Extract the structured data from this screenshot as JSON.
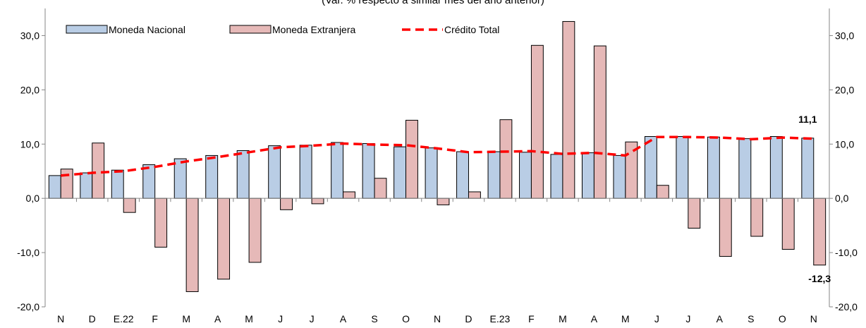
{
  "chart_data": {
    "type": "bar",
    "subtitle": "(Var. % respecto a similar mes del año anterior)",
    "categories": [
      "N",
      "D",
      "E.22",
      "F",
      "M",
      "A",
      "M",
      "J",
      "J",
      "A",
      "S",
      "O",
      "N",
      "D",
      "E.23",
      "F",
      "M",
      "A",
      "M",
      "J",
      "J",
      "A",
      "S",
      "O",
      "N"
    ],
    "ylim": [
      -20,
      35
    ],
    "yticks": [
      "-20,0",
      "-10,0",
      "0,0",
      "10,0",
      "20,0",
      "30,0"
    ],
    "ytick_values": [
      -20,
      -10,
      0,
      10,
      20,
      30
    ],
    "grid": false,
    "legend_position": "top-left",
    "series": [
      {
        "name": "Moneda Nacional",
        "kind": "bar",
        "color": "#b9cde5",
        "values": [
          4.2,
          4.7,
          5.2,
          6.2,
          7.3,
          7.9,
          8.8,
          9.7,
          9.8,
          10.3,
          10.1,
          9.5,
          9.3,
          8.6,
          8.6,
          8.5,
          8.1,
          8.4,
          7.9,
          11.4,
          11.4,
          11.3,
          11.0,
          11.4,
          11.1
        ]
      },
      {
        "name": "Moneda Extranjera",
        "kind": "bar",
        "color": "#e6b9b8",
        "values": [
          5.4,
          10.2,
          -2.6,
          -9.0,
          -17.2,
          -14.9,
          -11.8,
          -2.1,
          -1.0,
          1.2,
          3.7,
          14.4,
          -1.2,
          1.2,
          14.5,
          28.2,
          32.6,
          28.1,
          10.4,
          2.4,
          -5.5,
          -10.7,
          -7.0,
          -9.4,
          -12.3
        ]
      },
      {
        "name": "Crédito Total",
        "kind": "line",
        "color": "#ff0000",
        "values": [
          4.2,
          4.7,
          5.0,
          5.8,
          6.8,
          7.6,
          8.5,
          9.4,
          9.7,
          10.1,
          9.9,
          9.8,
          9.2,
          8.5,
          8.6,
          8.7,
          8.2,
          8.4,
          7.9,
          11.3,
          11.3,
          11.2,
          10.9,
          11.2,
          11.0
        ]
      }
    ],
    "annotations": [
      {
        "text": "11,1",
        "series": 0,
        "index": 24
      },
      {
        "text": "-12,3",
        "series": 1,
        "index": 24
      }
    ]
  }
}
